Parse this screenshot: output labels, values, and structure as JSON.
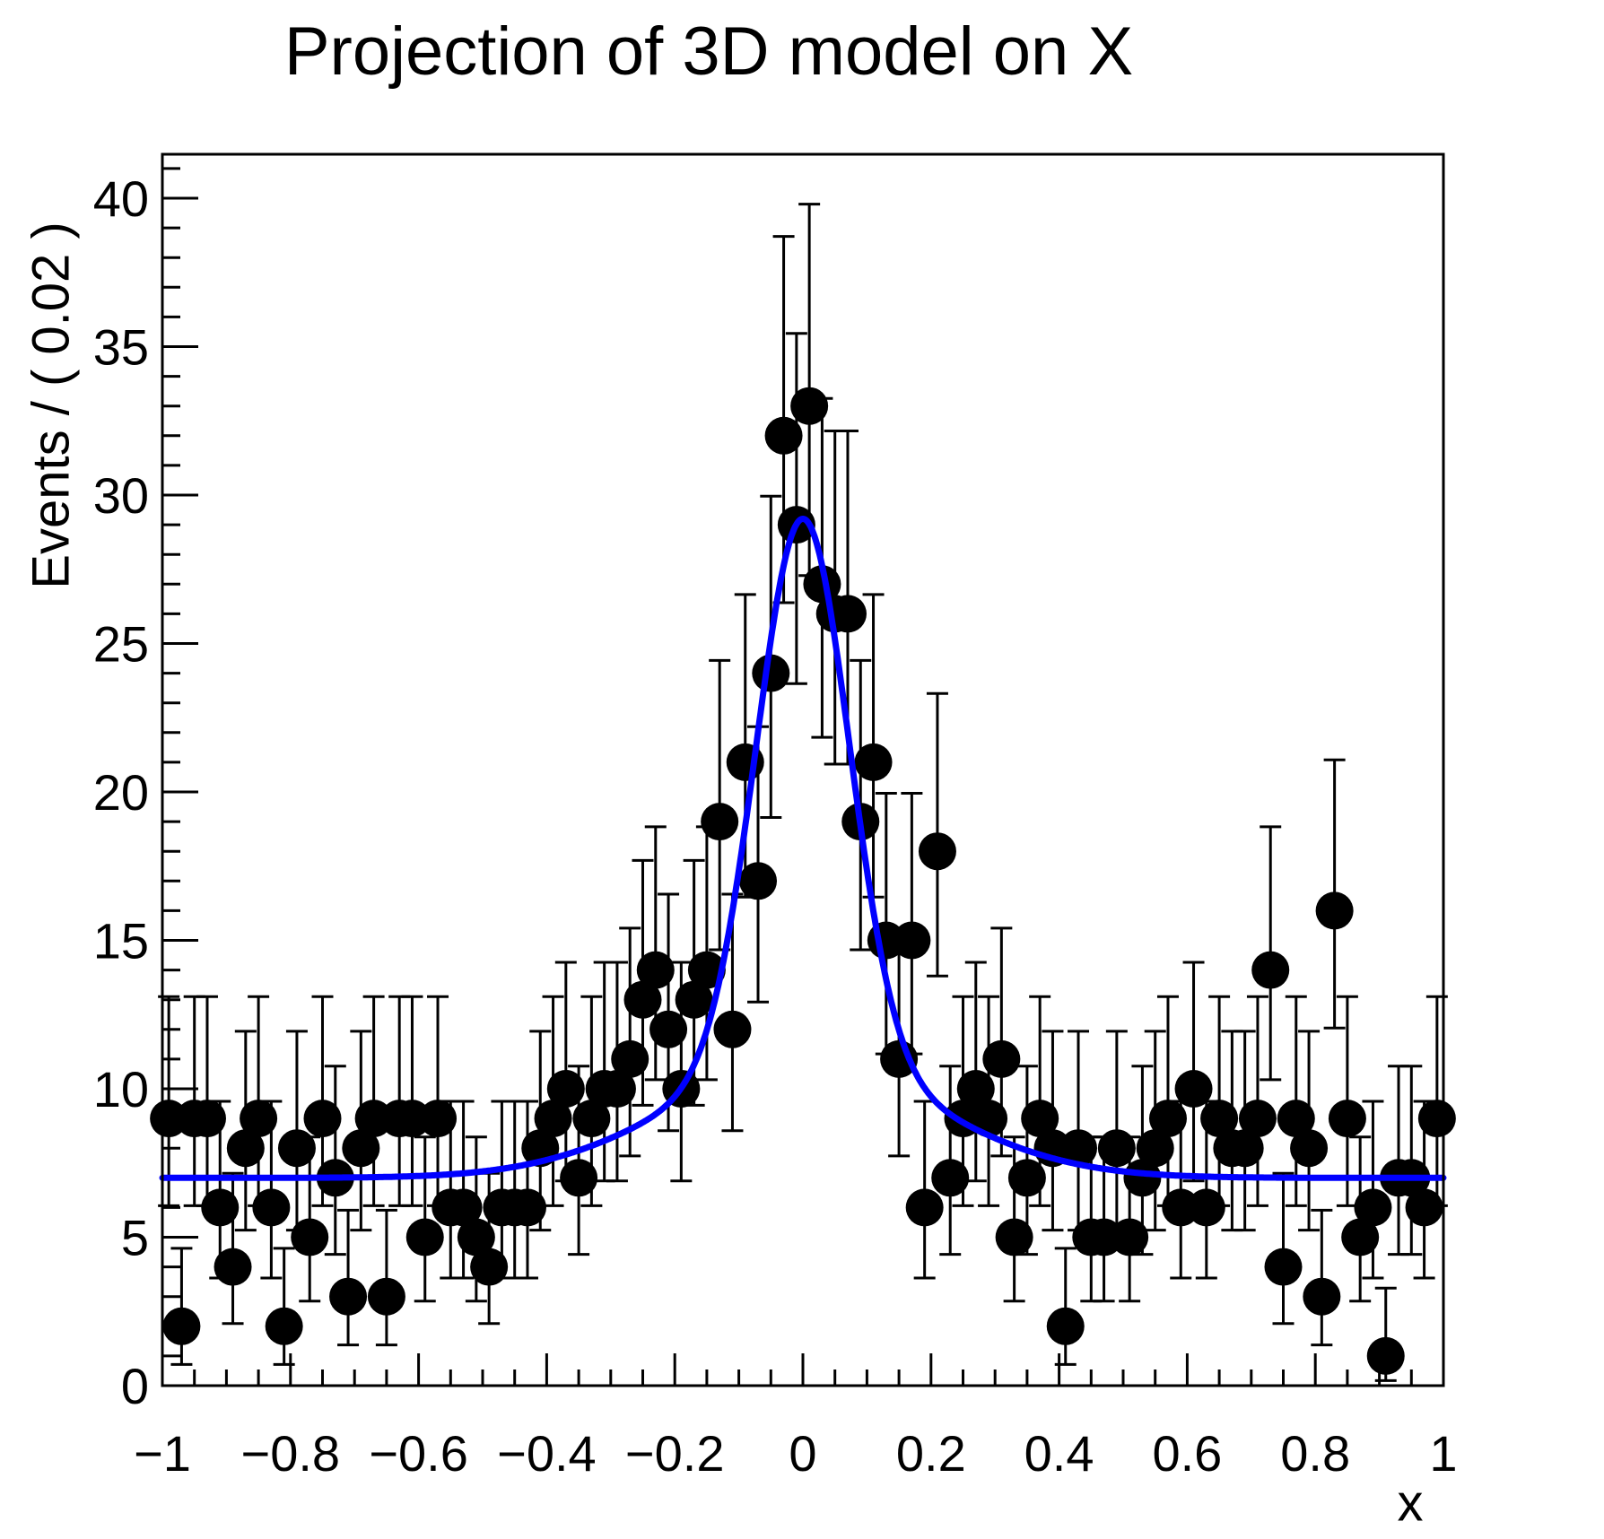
{
  "chart_data": {
    "type": "scatter",
    "title": "Projection of 3D model on X",
    "xlabel": "x",
    "ylabel": "Events / ( 0.02 )",
    "xlim": [
      -1,
      1
    ],
    "ylim": [
      0,
      41.48
    ],
    "grid": false,
    "legend": "none",
    "x_ticks": {
      "values": [
        -1,
        -0.8,
        -0.6,
        -0.4,
        -0.2,
        0,
        0.2,
        0.4,
        0.6,
        0.8,
        1
      ],
      "labels": [
        "−1",
        "−0.8",
        "−0.6",
        "−0.4",
        "−0.2",
        "0",
        "0.2",
        "0.4",
        "0.6",
        "0.8",
        "1"
      ]
    },
    "y_ticks": {
      "values": [
        0,
        5,
        10,
        15,
        20,
        25,
        30,
        35,
        40
      ],
      "labels": [
        "0",
        "5",
        "10",
        "15",
        "20",
        "25",
        "30",
        "35",
        "40"
      ]
    },
    "x_minor_step": 0.05,
    "y_minor_step": 1,
    "series": [
      {
        "name": "data-points",
        "type": "scatter-errorbars",
        "marker_color": "#000000",
        "marker_style": "filled-circle",
        "error_type": "poisson-68pct-asymmetric",
        "bin_width": 0.02,
        "first_bin_center": -0.99,
        "bin_step": 0.02,
        "total_events": 1000,
        "values": [
          9,
          2,
          9,
          9,
          6,
          4,
          8,
          9,
          6,
          2,
          8,
          5,
          9,
          7,
          3,
          8,
          9,
          3,
          9,
          9,
          5,
          9,
          6,
          6,
          5,
          4,
          6,
          6,
          6,
          8,
          9,
          10,
          7,
          9,
          10,
          10,
          11,
          13,
          14,
          12,
          10,
          13,
          14,
          19,
          12,
          21,
          17,
          24,
          32,
          29,
          33,
          27,
          26,
          26,
          19,
          21,
          15,
          11,
          15,
          6,
          18,
          7,
          9,
          10,
          9,
          11,
          5,
          7,
          9,
          8,
          2,
          8,
          5,
          5,
          8,
          5,
          7,
          8,
          9,
          6,
          10,
          6,
          9,
          8,
          8,
          9,
          14,
          4,
          9,
          8,
          3,
          16,
          9,
          5,
          6,
          1,
          7,
          7,
          6,
          9
        ]
      },
      {
        "name": "fit-curve",
        "type": "line",
        "color": "#0000ff",
        "model": "baseline + gauss1 + gauss2",
        "baseline": 7.0,
        "gauss1": {
          "amplitude": 18.5,
          "mean": 0,
          "sigma": 0.072
        },
        "gauss2": {
          "amplitude": 3.7,
          "mean": 0,
          "sigma": 0.21
        },
        "peak_height": 29.2,
        "peak_x": 0
      }
    ]
  },
  "colors": {
    "background": "#ffffff",
    "frame": "#000000",
    "text": "#000000",
    "curve": "#0000ff",
    "marker": "#000000"
  }
}
